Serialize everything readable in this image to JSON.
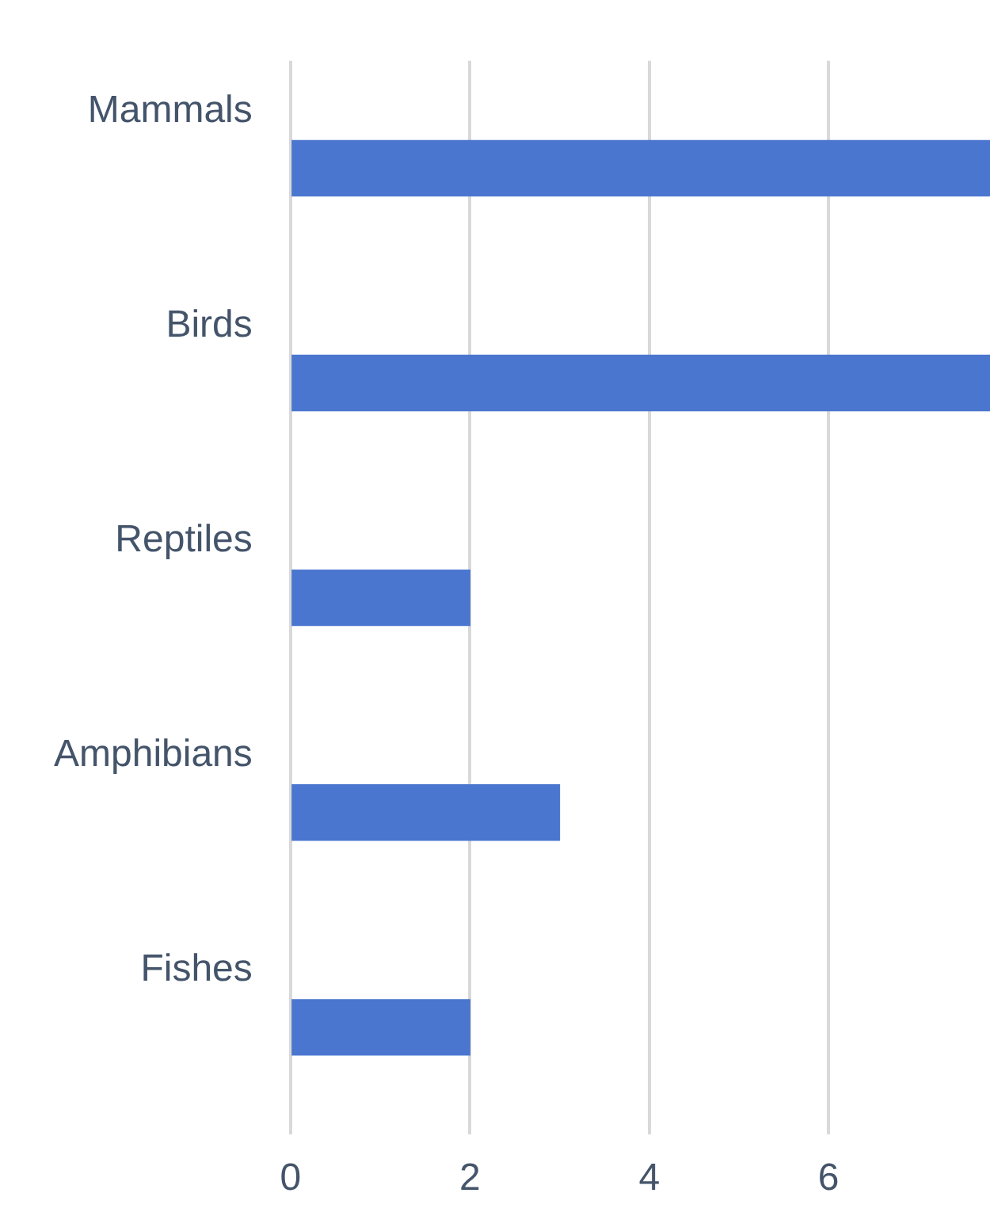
{
  "chart_data": {
    "type": "bar",
    "orientation": "horizontal",
    "categories": [
      "Mammals",
      "Birds",
      "Reptiles",
      "Amphibians",
      "Fishes"
    ],
    "values": [
      7.8,
      7.8,
      2,
      3,
      2
    ],
    "color": "#4a76cf",
    "xlim": [
      0,
      7.8
    ],
    "xticks": [
      0,
      2,
      4,
      6
    ],
    "grid": "x",
    "legend": false
  }
}
